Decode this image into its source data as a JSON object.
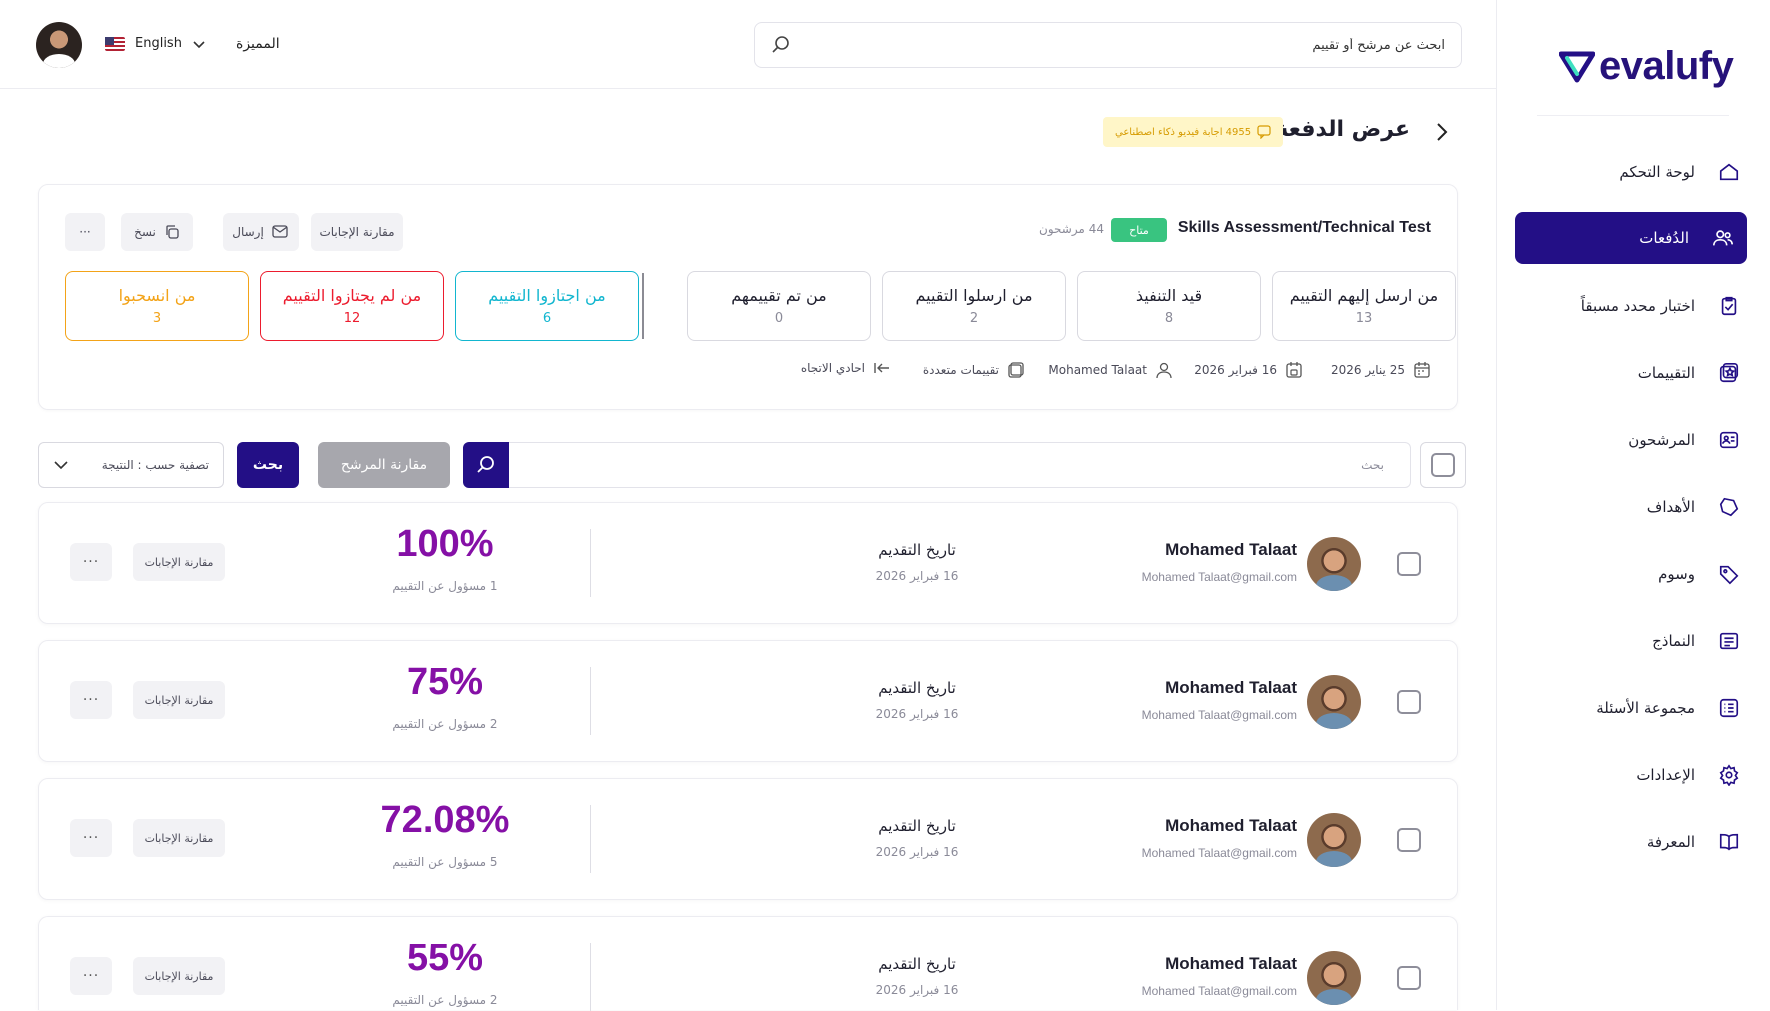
{
  "brand": {
    "name": "evalufy",
    "accent": "#230f86",
    "score_color": "#8510a6"
  },
  "sidebar": {
    "items": [
      {
        "label": "لوحة التحكم",
        "icon": "home-icon"
      },
      {
        "label": "الدُفعات",
        "icon": "users-icon",
        "active": true
      },
      {
        "label": "اختبار محدد مسبقاً",
        "icon": "clipboard-check-icon"
      },
      {
        "label": "التقييمات",
        "icon": "assessment-icon"
      },
      {
        "label": "المرشحون",
        "icon": "id-card-icon"
      },
      {
        "label": "الأهداف",
        "icon": "target-icon"
      },
      {
        "label": "وسوم",
        "icon": "tag-icon"
      },
      {
        "label": "النماذج",
        "icon": "form-icon"
      },
      {
        "label": "مجموعة الأسئلة",
        "icon": "list-icon"
      },
      {
        "label": "الإعدادات",
        "icon": "gear-icon"
      },
      {
        "label": "المعرفة",
        "icon": "book-icon"
      }
    ]
  },
  "topbar": {
    "search_placeholder": "ابحث عن مرشح أو تقييم",
    "language": "English",
    "feature_label": "المميزة"
  },
  "page": {
    "title": "عرض الدفعة",
    "ai_badge": "4955 اجابة فيديو ذكاء اصطناعي"
  },
  "batch": {
    "name": "Skills Assessment/Technical Test",
    "status": "متاح",
    "candidates": "44 مرشحون",
    "actions": {
      "compare": "مقارنة الإجابات",
      "send": "إرسال",
      "copy": "نسخ",
      "more": "···"
    },
    "stats": [
      {
        "label": "من ارسل إليهم التقييم",
        "value": "13",
        "color": "#d9d9e0",
        "text_color": "#1f1f2e"
      },
      {
        "label": "قيد التنفيذ",
        "value": "8",
        "color": "#d9d9e0",
        "text_color": "#1f1f2e"
      },
      {
        "label": "من ارسلوا التقييم",
        "value": "2",
        "color": "#d9d9e0",
        "text_color": "#1f1f2e"
      },
      {
        "label": "من تم تقييمهم",
        "value": "0",
        "color": "#d9d9e0",
        "text_color": "#1f1f2e"
      },
      {
        "label": "من اجتازوا التقييم",
        "value": "6",
        "color": "#12b6cf",
        "text_color": "#12b6cf"
      },
      {
        "label": "من لم يجتازوا التقييم",
        "value": "12",
        "color": "#ec1c2e",
        "text_color": "#ec1c2e"
      },
      {
        "label": "من انسحبوا",
        "value": "3",
        "color": "#f3a318",
        "text_color": "#f3a318"
      }
    ],
    "meta": {
      "start_date": "25 يناير 2026",
      "end_date": "16 فبراير 2026",
      "owner": "Mohamed Talaat",
      "assessments": "تقييمات متعددة",
      "direction": "احادي الاتجاه"
    }
  },
  "filters": {
    "search_placeholder": "بحث",
    "compare_candidates": "مقارنة المرشح",
    "search_button": "بحث",
    "sort_label": "تصفية حسب : النتيجة"
  },
  "candidates": [
    {
      "name": "Mohamed Talaat",
      "email": "Mohamed Talaat@gmail.com",
      "date_label": "تاريخ التقديم",
      "date": "16 فبراير 2026",
      "score": "100%",
      "responses": "1 مسؤول عن التقييم",
      "compare": "مقارنة الإجابات",
      "more": "···"
    },
    {
      "name": "Mohamed Talaat",
      "email": "Mohamed Talaat@gmail.com",
      "date_label": "تاريخ التقديم",
      "date": "16 فبراير 2026",
      "score": "75%",
      "responses": "2 مسؤول عن التقييم",
      "compare": "مقارنة الإجابات",
      "more": "···"
    },
    {
      "name": "Mohamed Talaat",
      "email": "Mohamed Talaat@gmail.com",
      "date_label": "تاريخ التقديم",
      "date": "16 فبراير 2026",
      "score": "72.08%",
      "responses": "5 مسؤول عن التقييم",
      "compare": "مقارنة الإجابات",
      "more": "···"
    },
    {
      "name": "Mohamed Talaat",
      "email": "Mohamed Talaat@gmail.com",
      "date_label": "تاريخ التقديم",
      "date": "16 فبراير 2026",
      "score": "55%",
      "responses": "2 مسؤول عن التقييم",
      "compare": "مقارنة الإجابات",
      "more": "···"
    }
  ]
}
